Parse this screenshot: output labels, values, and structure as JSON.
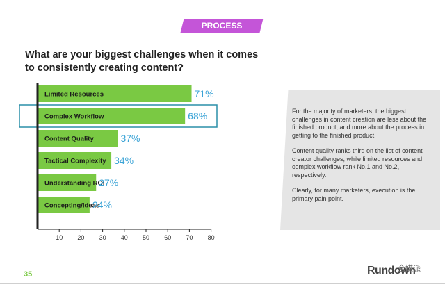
{
  "header": {
    "tag_label": "PROCESS"
  },
  "chart_data": {
    "type": "bar",
    "orientation": "horizontal",
    "title": "What are your biggest challenges when it comes to consistently creating content?",
    "categories": [
      "Limited Resources",
      "Complex Workflow",
      "Content Quality",
      "Tactical Complexity",
      "Understanding ROI",
      "Concepting/Ideas"
    ],
    "values": [
      71,
      68,
      37,
      34,
      27,
      24
    ],
    "value_labels": [
      "71%",
      "68%",
      "37%",
      "34%",
      "27%",
      "24%"
    ],
    "xticks": [
      10,
      20,
      30,
      40,
      50,
      60,
      70,
      80
    ],
    "xlim": [
      0,
      80
    ],
    "highlighted_category": "Complex Workflow",
    "bar_color": "#7ac943",
    "value_label_color": "#3aa3d6",
    "highlight_color": "#2a8fa8",
    "grid": false
  },
  "panel": {
    "paragraphs": [
      "For the majority of marketers, the biggest challenges in content creation are less about the finished product, and more about the process in getting to the finished product.",
      "Content quality ranks third on the list of content creator challenges, while limited resources and complex workflow rank No.1 and No.2, respectively.",
      "Clearly, for many marketers, execution is the primary pain point."
    ]
  },
  "footer": {
    "page_number": "35",
    "logo_text": "Rundown",
    "watermark_text": "全媒派"
  },
  "colors": {
    "accent": "#c455d8",
    "page_number": "#7ac943"
  }
}
